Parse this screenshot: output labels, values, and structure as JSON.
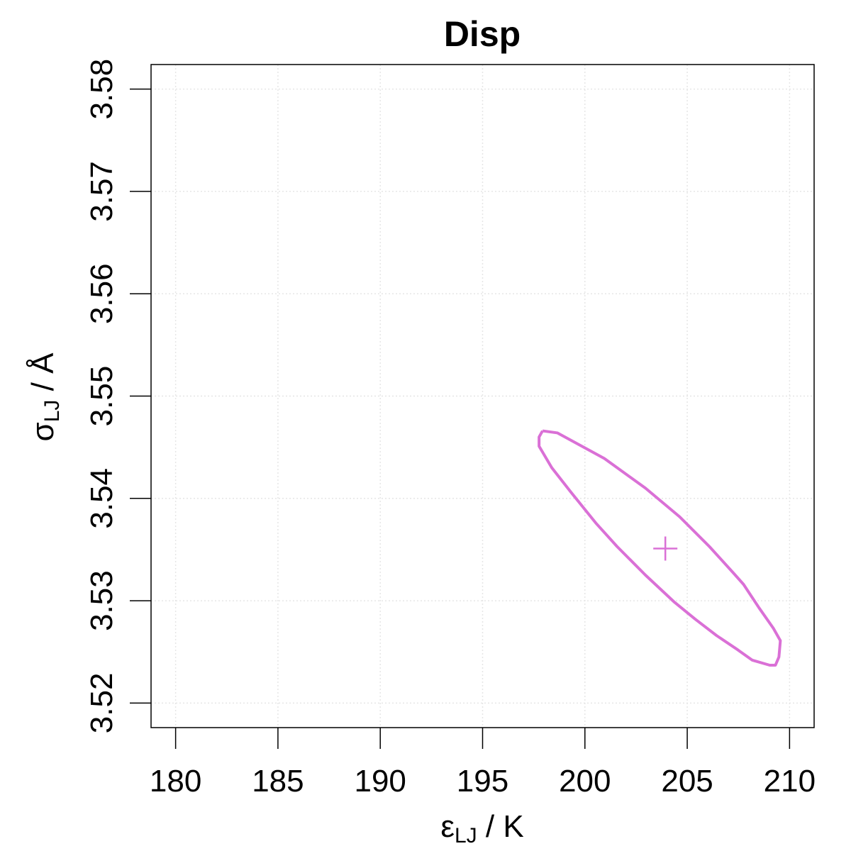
{
  "chart_data": {
    "type": "contour",
    "title": "Disp",
    "x_label": {
      "symbol": "ε",
      "subscript": "LJ",
      "unit": " / K"
    },
    "y_label": {
      "symbol": "σ",
      "subscript": "LJ",
      "unit": " / Å"
    },
    "xlim": [
      178.8,
      211.2
    ],
    "ylim": [
      3.5176,
      3.5824
    ],
    "xticks": [
      180,
      185,
      190,
      195,
      200,
      205,
      210
    ],
    "yticks": [
      3.52,
      3.53,
      3.54,
      3.55,
      3.56,
      3.57,
      3.58
    ],
    "grid": true,
    "series": [
      {
        "style": "line",
        "color": "#da70d6",
        "x": [
          197.93,
          198.66,
          200.95,
          202.96,
          204.63,
          206.08,
          207.26,
          207.75,
          208.51,
          209.21,
          209.55,
          209.48,
          209.31,
          209.03,
          208.17,
          207.47,
          206.43,
          205.39,
          204.35,
          202.96,
          201.57,
          200.53,
          199.32,
          198.38,
          197.76,
          197.76,
          197.93
        ],
        "values": [
          3.5466,
          3.5464,
          3.5439,
          3.541,
          3.5382,
          3.5353,
          3.5327,
          3.5316,
          3.5293,
          3.5273,
          3.5261,
          3.5245,
          3.5237,
          3.5237,
          3.5242,
          3.5252,
          3.5266,
          3.5282,
          3.5299,
          3.5325,
          3.5353,
          3.5376,
          3.5406,
          3.543,
          3.5451,
          3.546,
          3.5466
        ]
      },
      {
        "style": "plus",
        "color": "#da70d6",
        "x": [
          203.93
        ],
        "values": [
          3.5351
        ]
      }
    ]
  }
}
